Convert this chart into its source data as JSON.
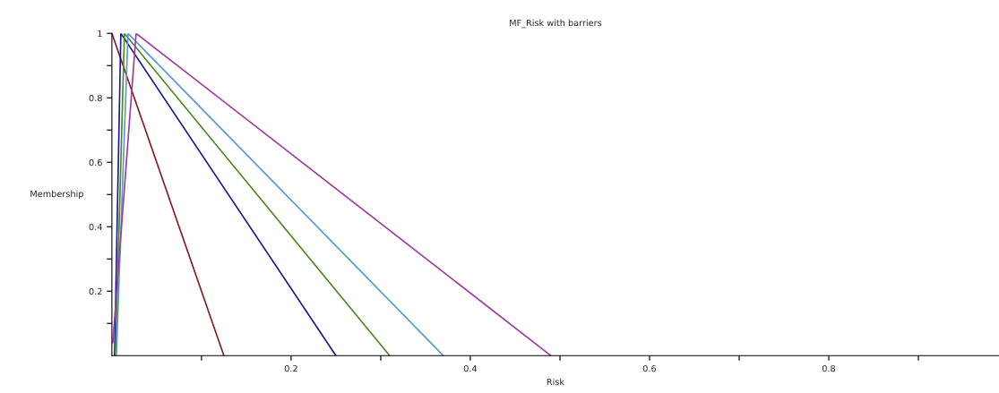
{
  "chart_data": {
    "type": "line",
    "title": "MF_Risk with barriers",
    "xlabel": "Risk",
    "ylabel": "Membership",
    "series": [
      {
        "color": "#8b1a1a",
        "x": [
          0.0,
          0.125
        ],
        "values": [
          1,
          0
        ]
      },
      {
        "color": "#1a1a9a",
        "x": [
          0.003,
          0.01,
          0.25
        ],
        "values": [
          0,
          1,
          0
        ]
      },
      {
        "color": "#4a8a1a",
        "x": [
          0.004,
          0.014,
          0.31
        ],
        "values": [
          0,
          1,
          0
        ]
      },
      {
        "color": "#5a9ad0",
        "x": [
          0.005,
          0.018,
          0.37
        ],
        "values": [
          0,
          1,
          0
        ]
      },
      {
        "color": "#a03aa0",
        "x": [
          0.001,
          0.027,
          0.49
        ],
        "values": [
          0.04,
          1,
          0
        ]
      }
    ],
    "xlim": [
      0,
      0.99
    ],
    "ylim": [
      0,
      1
    ],
    "xticks": [
      {
        "value": 0.1,
        "label": null
      },
      0.2,
      {
        "value": 0.3,
        "label": null
      },
      0.4,
      {
        "value": 0.5,
        "label": null
      },
      0.6,
      {
        "value": 0.7,
        "label": null
      },
      0.8,
      {
        "value": 0.9,
        "label": null
      }
    ],
    "yticks": [
      {
        "value": 0.1,
        "label": null
      },
      0.2,
      {
        "value": 0.3,
        "label": null
      },
      0.4,
      {
        "value": 0.5,
        "label": null
      },
      0.6,
      {
        "value": 0.7,
        "label": null
      },
      0.8,
      {
        "value": 0.9,
        "label": null
      },
      1
    ],
    "grid": false,
    "marker": "none",
    "line_style": "solid"
  }
}
